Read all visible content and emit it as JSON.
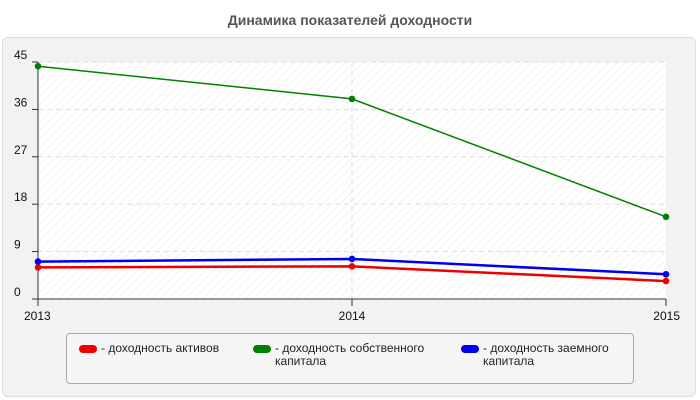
{
  "chart_data": {
    "type": "line",
    "title": "Динамика показателей доходности",
    "xlabel": "",
    "ylabel": "",
    "x": [
      "2013",
      "2014",
      "2015"
    ],
    "ylim": [
      0,
      45
    ],
    "yticks": [
      "0",
      "9",
      "18",
      "27",
      "36",
      "45"
    ],
    "grid": true,
    "legend_position": "bottom",
    "series": [
      {
        "name": "- доходность активов",
        "name_lines": [
          "- доходность активов"
        ],
        "color": "#ee0000",
        "values": [
          6.0,
          6.2,
          3.4
        ]
      },
      {
        "name": "- доходность собственного капитала",
        "name_lines": [
          "- доходность собственного",
          "капитала"
        ],
        "color": "#008000",
        "values": [
          44.2,
          38.0,
          15.6
        ]
      },
      {
        "name": "- доходность заемного капитала",
        "name_lines": [
          "- доходность заемного",
          "капитала"
        ],
        "color": "#0000ee",
        "values": [
          7.1,
          7.6,
          4.7
        ]
      }
    ]
  }
}
